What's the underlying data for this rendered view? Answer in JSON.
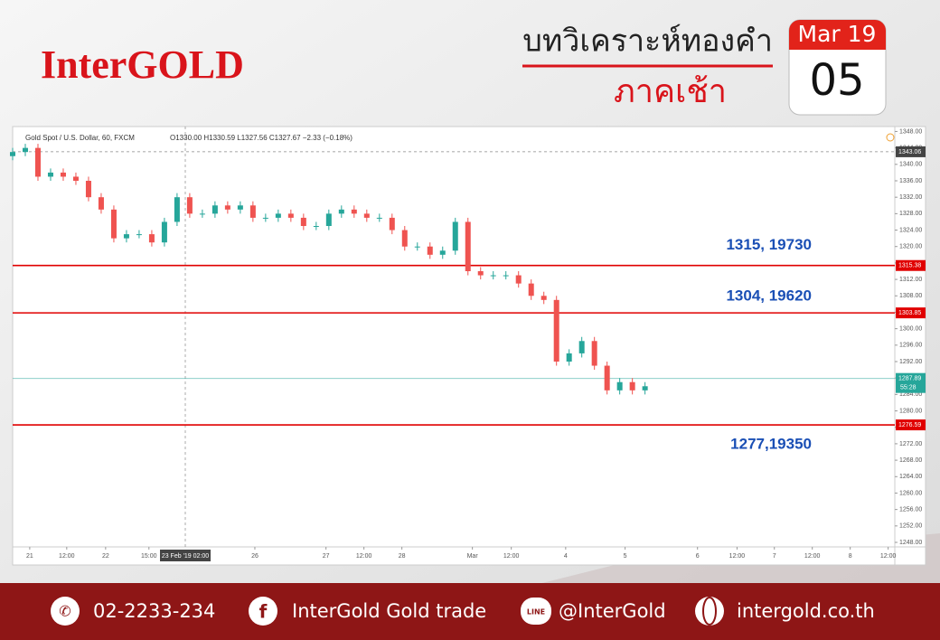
{
  "header": {
    "brand": "InterGOLD",
    "title": "บทวิเคราะห์ทองคำ",
    "subtitle": "ภาคเช้า",
    "date_month": "Mar 19",
    "date_day": "05"
  },
  "chart_data": {
    "type": "candlestick",
    "symbol_label": "Gold Spot / U.S. Dollar, 60, FXCM",
    "ohlc_readout": "O1330.00 H1330.59 L1327.56 C1327.67 −2.33 (−0.18%)",
    "up_color": "#26a69a",
    "down_color": "#ef5350",
    "x": [
      0,
      4,
      8,
      12,
      16,
      20,
      24,
      28,
      32,
      36,
      40,
      44,
      48,
      52,
      56,
      60,
      64,
      68,
      72,
      76,
      80,
      84,
      88,
      92,
      96,
      100,
      104,
      108,
      112,
      116,
      120,
      124,
      128,
      132,
      136,
      140,
      144,
      148,
      152,
      156,
      160,
      164,
      168,
      172,
      176,
      180,
      184,
      188,
      192,
      196,
      200
    ],
    "open": [
      1342,
      1343,
      1344,
      1337,
      1338,
      1337,
      1336,
      1332,
      1329,
      1322,
      1323,
      1323,
      1321,
      1326,
      1332,
      1328,
      1328,
      1330,
      1329,
      1330,
      1327,
      1327,
      1328,
      1327,
      1325,
      1325,
      1328,
      1329,
      1328,
      1327,
      1327,
      1324,
      1320,
      1320,
      1318,
      1319,
      1326,
      1314,
      1313,
      1313,
      1313,
      1311,
      1308,
      1307,
      1292,
      1294,
      1297,
      1291,
      1285,
      1287,
      1285
    ],
    "high": [
      1344,
      1345,
      1345,
      1339,
      1339,
      1338,
      1337,
      1333,
      1330,
      1324,
      1324,
      1324,
      1327,
      1333,
      1333,
      1329,
      1331,
      1331,
      1331,
      1331,
      1328,
      1329,
      1329,
      1328,
      1326,
      1329,
      1330,
      1330,
      1329,
      1328,
      1328,
      1325,
      1321,
      1321,
      1320,
      1327,
      1327,
      1315,
      1314,
      1314,
      1314,
      1312,
      1309,
      1308,
      1295,
      1298,
      1298,
      1292,
      1288,
      1288,
      1287
    ],
    "low": [
      1341,
      1342,
      1336,
      1336,
      1336,
      1335,
      1331,
      1328,
      1321,
      1321,
      1322,
      1320,
      1320,
      1325,
      1327,
      1327,
      1327,
      1328,
      1328,
      1326,
      1326,
      1326,
      1326,
      1324,
      1324,
      1324,
      1327,
      1327,
      1326,
      1326,
      1323,
      1319,
      1319,
      1317,
      1317,
      1318,
      1313,
      1312,
      1312,
      1312,
      1310,
      1307,
      1306,
      1291,
      1291,
      1293,
      1290,
      1284,
      1284,
      1284,
      1284
    ],
    "close": [
      1343,
      1344,
      1337,
      1338,
      1337,
      1336,
      1332,
      1329,
      1322,
      1323,
      1323,
      1321,
      1326,
      1332,
      1328,
      1328,
      1330,
      1329,
      1330,
      1327,
      1327,
      1328,
      1327,
      1325,
      1325,
      1328,
      1329,
      1328,
      1327,
      1327,
      1324,
      1320,
      1320,
      1318,
      1319,
      1326,
      1314,
      1313,
      1313,
      1313,
      1311,
      1308,
      1307,
      1292,
      1294,
      1297,
      1291,
      1285,
      1287,
      1285,
      1286
    ],
    "xlim": [
      0,
      279
    ],
    "ylim": [
      1246.9,
      1349.2
    ],
    "xticks": [
      {
        "value": 5.4,
        "label": "21"
      },
      {
        "value": 17.1,
        "label": "12:00"
      },
      {
        "value": 29.4,
        "label": "22"
      },
      {
        "value": 43.1,
        "label": "15:00"
      },
      {
        "value": 76.6,
        "label": "26"
      },
      {
        "value": 99.1,
        "label": "27"
      },
      {
        "value": 111.1,
        "label": "12:00"
      },
      {
        "value": 123.1,
        "label": "28"
      },
      {
        "value": 145.4,
        "label": "Mar"
      },
      {
        "value": 157.7,
        "label": "12:00"
      },
      {
        "value": 174.9,
        "label": "4"
      },
      {
        "value": 193.7,
        "label": "5"
      },
      {
        "value": 216.6,
        "label": "6"
      },
      {
        "value": 229.1,
        "label": "12:00"
      },
      {
        "value": 240.9,
        "label": "7"
      },
      {
        "value": 252.9,
        "label": "12:00"
      },
      {
        "value": 264.9,
        "label": "8"
      },
      {
        "value": 276.9,
        "label": "12:00"
      }
    ],
    "yticks": [
      {
        "value": 1248,
        "label": "1248.00"
      },
      {
        "value": 1252,
        "label": "1252.00"
      },
      {
        "value": 1256,
        "label": "1256.00"
      },
      {
        "value": 1260,
        "label": "1260.00"
      },
      {
        "value": 1264,
        "label": "1264.00"
      },
      {
        "value": 1268,
        "label": "1268.00"
      },
      {
        "value": 1272,
        "label": "1272.00"
      },
      {
        "value": 1276,
        "label": "1276.00"
      },
      {
        "value": 1280,
        "label": "1280.00"
      },
      {
        "value": 1284,
        "label": "1284.00"
      },
      {
        "value": 1288,
        "label": "1288.00"
      },
      {
        "value": 1292,
        "label": "1292.00"
      },
      {
        "value": 1296,
        "label": "1296.00"
      },
      {
        "value": 1300,
        "label": "1300.00"
      },
      {
        "value": 1304,
        "label": "1304.00"
      },
      {
        "value": 1308,
        "label": "1308.00"
      },
      {
        "value": 1312,
        "label": "1312.00"
      },
      {
        "value": 1316,
        "label": "1316.00"
      },
      {
        "value": 1320,
        "label": "1320.00"
      },
      {
        "value": 1324,
        "label": "1324.00"
      },
      {
        "value": 1328,
        "label": "1328.00"
      },
      {
        "value": 1332,
        "label": "1332.00"
      },
      {
        "value": 1336,
        "label": "1336.00"
      },
      {
        "value": 1340,
        "label": "1340.00"
      },
      {
        "value": 1344,
        "label": "1344.00"
      },
      {
        "value": 1348,
        "label": "1348.00"
      }
    ],
    "crosshair": {
      "x": 54.6,
      "x_label": "23 Feb '19   02:00",
      "price": 1343.06
    },
    "levels": [
      {
        "value": 1315.38,
        "annotation": "1315, 19730"
      },
      {
        "value": 1303.85,
        "annotation": "1304, 19620"
      },
      {
        "value": 1276.59,
        "annotation": "1277,19350"
      }
    ],
    "level_color": "#e00000",
    "current_price": {
      "value": 1287.89,
      "countdown": "55:28",
      "color": "#26a69a"
    }
  },
  "footer": {
    "phone": "02-2233-234",
    "facebook": "InterGold Gold trade",
    "line": "@InterGold",
    "website": "intergold.co.th"
  }
}
